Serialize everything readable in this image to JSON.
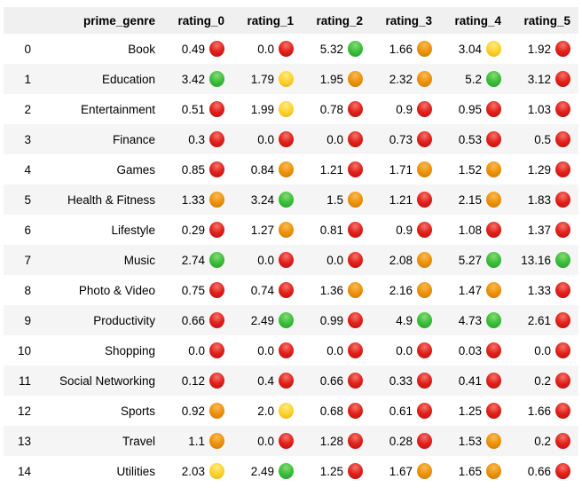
{
  "chart_data": {
    "type": "table",
    "index_header": "",
    "columns": [
      "prime_genre",
      "rating_0",
      "rating_1",
      "rating_2",
      "rating_3",
      "rating_4",
      "rating_5"
    ],
    "rows": [
      {
        "index": "0",
        "prime_genre": "Book",
        "values": [
          "0.49",
          "0.0",
          "5.32",
          "1.66",
          "3.04",
          "1.92"
        ],
        "colors": [
          "red",
          "red",
          "green",
          "orange",
          "yellow",
          "red"
        ]
      },
      {
        "index": "1",
        "prime_genre": "Education",
        "values": [
          "3.42",
          "1.79",
          "1.95",
          "2.32",
          "5.2",
          "3.12"
        ],
        "colors": [
          "green",
          "yellow",
          "orange",
          "orange",
          "green",
          "red"
        ]
      },
      {
        "index": "2",
        "prime_genre": "Entertainment",
        "values": [
          "0.51",
          "1.99",
          "0.78",
          "0.9",
          "0.95",
          "1.03"
        ],
        "colors": [
          "red",
          "yellow",
          "red",
          "red",
          "red",
          "red"
        ]
      },
      {
        "index": "3",
        "prime_genre": "Finance",
        "values": [
          "0.3",
          "0.0",
          "0.0",
          "0.73",
          "0.53",
          "0.5"
        ],
        "colors": [
          "red",
          "red",
          "red",
          "red",
          "red",
          "red"
        ]
      },
      {
        "index": "4",
        "prime_genre": "Games",
        "values": [
          "0.85",
          "0.84",
          "1.21",
          "1.71",
          "1.52",
          "1.29"
        ],
        "colors": [
          "red",
          "orange",
          "red",
          "orange",
          "orange",
          "red"
        ]
      },
      {
        "index": "5",
        "prime_genre": "Health & Fitness",
        "values": [
          "1.33",
          "3.24",
          "1.5",
          "1.21",
          "2.15",
          "1.83"
        ],
        "colors": [
          "orange",
          "green",
          "orange",
          "red",
          "orange",
          "red"
        ]
      },
      {
        "index": "6",
        "prime_genre": "Lifestyle",
        "values": [
          "0.29",
          "1.27",
          "0.81",
          "0.9",
          "1.08",
          "1.37"
        ],
        "colors": [
          "red",
          "orange",
          "red",
          "red",
          "red",
          "red"
        ]
      },
      {
        "index": "7",
        "prime_genre": "Music",
        "values": [
          "2.74",
          "0.0",
          "0.0",
          "2.08",
          "5.27",
          "13.16"
        ],
        "colors": [
          "green",
          "red",
          "red",
          "orange",
          "green",
          "green"
        ]
      },
      {
        "index": "8",
        "prime_genre": "Photo & Video",
        "values": [
          "0.75",
          "0.74",
          "1.36",
          "2.16",
          "1.47",
          "1.33"
        ],
        "colors": [
          "red",
          "red",
          "orange",
          "orange",
          "orange",
          "red"
        ]
      },
      {
        "index": "9",
        "prime_genre": "Productivity",
        "values": [
          "0.66",
          "2.49",
          "0.99",
          "4.9",
          "4.73",
          "2.61"
        ],
        "colors": [
          "red",
          "green",
          "red",
          "green",
          "green",
          "red"
        ]
      },
      {
        "index": "10",
        "prime_genre": "Shopping",
        "values": [
          "0.0",
          "0.0",
          "0.0",
          "0.0",
          "0.03",
          "0.0"
        ],
        "colors": [
          "red",
          "red",
          "red",
          "red",
          "red",
          "red"
        ]
      },
      {
        "index": "11",
        "prime_genre": "Social Networking",
        "values": [
          "0.12",
          "0.4",
          "0.66",
          "0.33",
          "0.41",
          "0.2"
        ],
        "colors": [
          "red",
          "red",
          "red",
          "red",
          "red",
          "red"
        ]
      },
      {
        "index": "12",
        "prime_genre": "Sports",
        "values": [
          "0.92",
          "2.0",
          "0.68",
          "0.61",
          "1.25",
          "1.66"
        ],
        "colors": [
          "orange",
          "yellow",
          "red",
          "red",
          "red",
          "red"
        ]
      },
      {
        "index": "13",
        "prime_genre": "Travel",
        "values": [
          "1.1",
          "0.0",
          "1.28",
          "0.28",
          "1.53",
          "0.2"
        ],
        "colors": [
          "orange",
          "red",
          "red",
          "red",
          "orange",
          "red"
        ]
      },
      {
        "index": "14",
        "prime_genre": "Utilities",
        "values": [
          "2.03",
          "2.49",
          "1.25",
          "1.67",
          "1.65",
          "0.66"
        ],
        "colors": [
          "yellow",
          "green",
          "red",
          "orange",
          "orange",
          "red"
        ]
      }
    ],
    "legend_colors": {
      "red": "#e2211c",
      "orange": "#ee930b",
      "yellow": "#ffd42e",
      "green": "#3cbf3c"
    },
    "layout": {
      "header_background": "#f0f0f1",
      "stripe_background": "#f5f5f6",
      "text_color": "#000000"
    }
  }
}
